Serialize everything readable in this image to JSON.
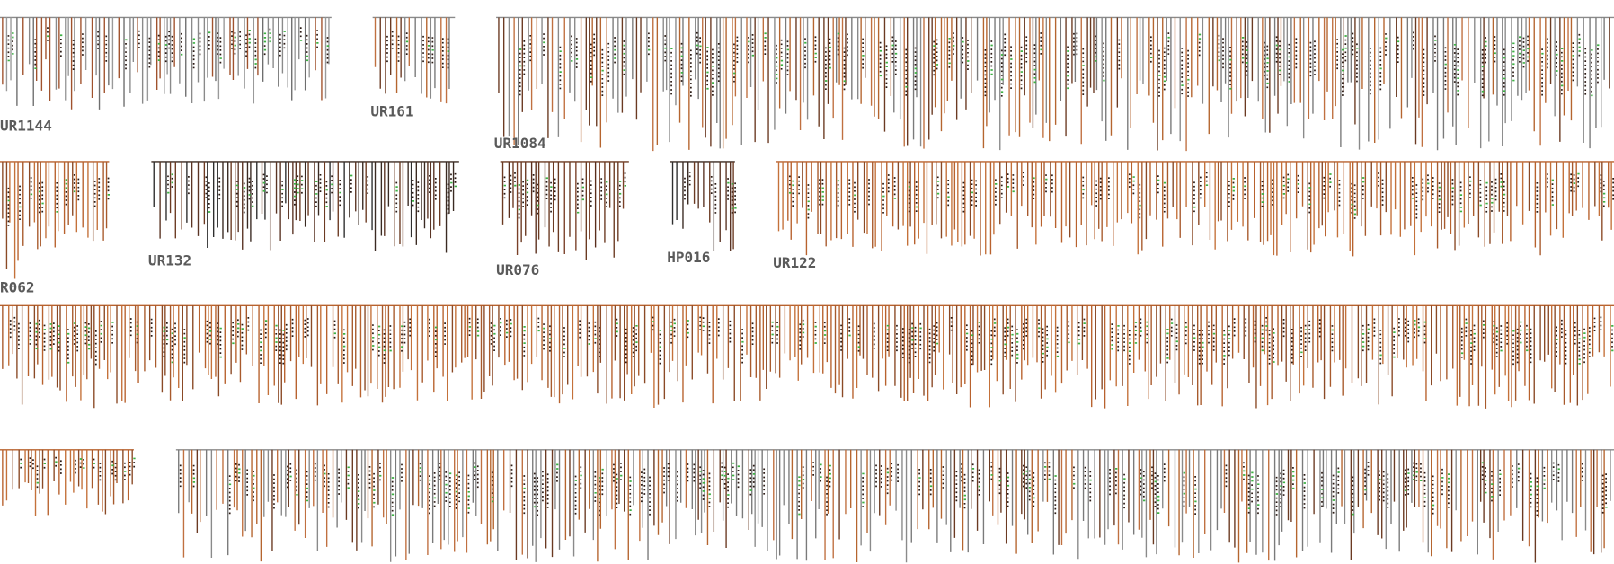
{
  "panels": [
    {
      "label": "UR1144"
    },
    {
      "label": "UR161"
    },
    {
      "label": "UR1084"
    },
    {
      "label": "R062"
    },
    {
      "label": "UR132"
    },
    {
      "label": "UR076"
    },
    {
      "label": "HP016"
    },
    {
      "label": "UR122"
    }
  ]
}
